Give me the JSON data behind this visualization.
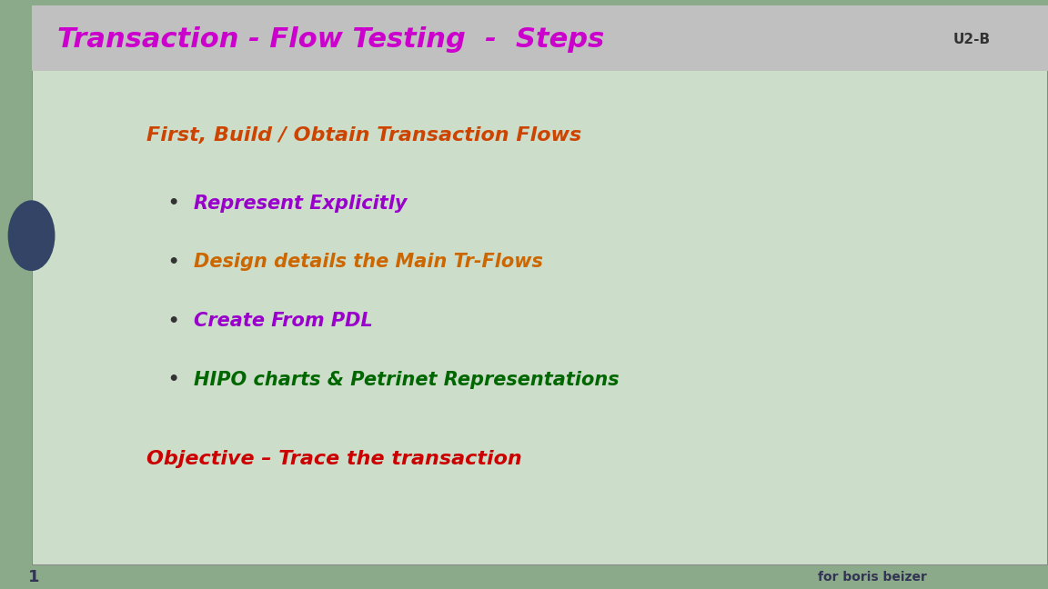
{
  "title": "Transaction - Flow Testing  -  Steps",
  "title_color": "#cc00cc",
  "title_bg_color": "#c0c0c0",
  "u2b_label": "U2-B",
  "u2b_color": "#333333",
  "content_bg_color": "#ccdeca",
  "outer_bg_color": "#8aaa8a",
  "heading": "First, Build / Obtain Transaction Flows",
  "heading_color": "#cc4400",
  "bullet_colors": [
    "#9900cc",
    "#cc6600",
    "#9900cc",
    "#006600"
  ],
  "bullets": [
    "Represent Explicitly",
    "Design details the Main Tr-Flows",
    "Create From PDL",
    "HIPO charts & Petrinet Representations"
  ],
  "objective_text": "Objective – Trace the transaction",
  "objective_color": "#cc0000",
  "footer_text": "for boris beizer",
  "footer_color": "#333355",
  "page_num": "1",
  "page_color": "#333355",
  "left_circle_color": "#334466"
}
